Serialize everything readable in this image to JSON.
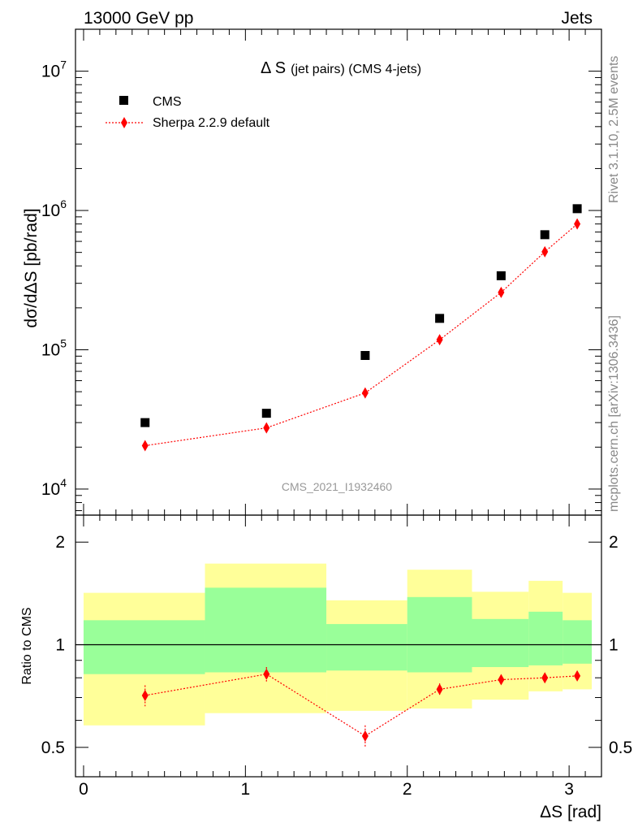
{
  "header": {
    "left": "13000 GeV pp",
    "right": "Jets"
  },
  "side_labels": {
    "rivet": "Rivet 3.1.10,  2.5M events",
    "mcplots": "mcplots.cern.ch [arXiv:1306.3436]"
  },
  "plot_title": {
    "main": "Δ S",
    "paren": "(jet pairs) (CMS 4-jets)"
  },
  "watermark": "CMS_2021_I1932460",
  "colors": {
    "data": "#000000",
    "mc": "#ff0000",
    "band_inner": "#99ff99",
    "band_outer": "#ffff99"
  },
  "chart_data": [
    {
      "type": "scatter",
      "panel": "main",
      "ylabel": "dσ/dΔS [pb/rad]",
      "yscale": "log",
      "ylim": [
        6500,
        20000000
      ],
      "xlim": [
        -0.05,
        3.2
      ],
      "yticks": [
        {
          "mant": "10",
          "exp": "4",
          "value": 10000
        },
        {
          "mant": "10",
          "exp": "5",
          "value": 100000
        },
        {
          "mant": "10",
          "exp": "6",
          "value": 1000000
        },
        {
          "mant": "10",
          "exp": "7",
          "value": 10000000
        }
      ],
      "legend": {
        "position": "top-left"
      },
      "series": [
        {
          "name": "CMS",
          "marker": "square",
          "x": [
            0.38,
            1.13,
            1.74,
            2.2,
            2.58,
            2.85,
            3.05
          ],
          "y": [
            30000,
            35000,
            91000,
            168000,
            340000,
            670000,
            1030000
          ]
        },
        {
          "name": "Sherpa 2.2.9 default",
          "marker": "diamond",
          "line": "dotted",
          "x": [
            0.38,
            1.13,
            1.74,
            2.2,
            2.58,
            2.85,
            3.05
          ],
          "y": [
            20500,
            27500,
            49000,
            118000,
            258000,
            505000,
            800000
          ],
          "yerr": [
            1500,
            1800,
            3000,
            6000,
            12000,
            25000,
            40000
          ]
        }
      ]
    },
    {
      "type": "scatter",
      "panel": "ratio",
      "ylabel": "Ratio to CMS",
      "xlabel": "ΔS [rad]",
      "yscale": "log",
      "ylim": [
        0.41,
        2.4
      ],
      "xlim": [
        -0.05,
        3.2
      ],
      "xticks": [
        "0",
        "1",
        "2",
        "3"
      ],
      "yticks": [
        "0.5",
        "1",
        "2"
      ],
      "reference_line": 1,
      "bands": [
        {
          "x0": 0.0,
          "x1": 0.75,
          "inner": [
            0.82,
            1.18
          ],
          "outer": [
            0.58,
            1.42
          ]
        },
        {
          "x0": 0.75,
          "x1": 1.5,
          "inner": [
            0.83,
            1.47
          ],
          "outer": [
            0.63,
            1.73
          ]
        },
        {
          "x0": 1.5,
          "x1": 2.0,
          "inner": [
            0.84,
            1.15
          ],
          "outer": [
            0.64,
            1.35
          ]
        },
        {
          "x0": 2.0,
          "x1": 2.4,
          "inner": [
            0.83,
            1.38
          ],
          "outer": [
            0.65,
            1.66
          ]
        },
        {
          "x0": 2.4,
          "x1": 2.75,
          "inner": [
            0.86,
            1.19
          ],
          "outer": [
            0.69,
            1.43
          ]
        },
        {
          "x0": 2.75,
          "x1": 2.96,
          "inner": [
            0.87,
            1.25
          ],
          "outer": [
            0.73,
            1.54
          ]
        },
        {
          "x0": 2.96,
          "x1": 3.14,
          "inner": [
            0.88,
            1.18
          ],
          "outer": [
            0.74,
            1.42
          ]
        }
      ],
      "series": [
        {
          "name": "Sherpa 2.2.9 default",
          "marker": "diamond",
          "line": "dotted",
          "x": [
            0.38,
            1.13,
            1.74,
            2.2,
            2.58,
            2.85,
            3.05
          ],
          "y": [
            0.71,
            0.82,
            0.54,
            0.74,
            0.79,
            0.8,
            0.81
          ],
          "yerr": [
            0.05,
            0.04,
            0.04,
            0.03,
            0.025,
            0.02,
            0.02
          ]
        }
      ]
    }
  ]
}
